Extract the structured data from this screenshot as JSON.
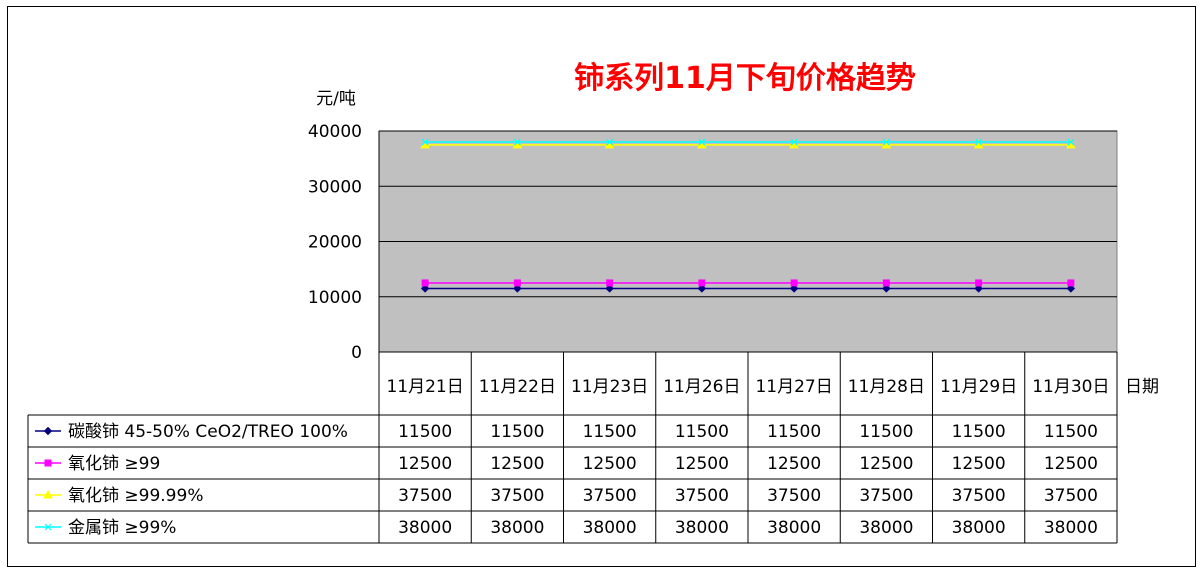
{
  "chart_data": {
    "type": "line",
    "title": "铈系列11月下旬价格趋势",
    "ylabel": "元/吨",
    "xlabel": "日期",
    "ylim": [
      0,
      40000
    ],
    "yticks": [
      "40000",
      "30000",
      "20000",
      "10000",
      "0"
    ],
    "categories": [
      "11月21日",
      "11月22日",
      "11月23日",
      "11月26日",
      "11月27日",
      "11月28日",
      "11月29日",
      "11月30日"
    ],
    "grid": true,
    "legend": "table-below",
    "series": [
      {
        "name": "碳酸铈 45-50% CeO2/TREO 100%",
        "values": [
          11500,
          11500,
          11500,
          11500,
          11500,
          11500,
          11500,
          11500
        ],
        "color": "#000080",
        "marker": "diamond"
      },
      {
        "name": "氧化铈 ≥99",
        "values": [
          12500,
          12500,
          12500,
          12500,
          12500,
          12500,
          12500,
          12500
        ],
        "color": "#ff00ff",
        "marker": "square"
      },
      {
        "name": "氧化铈 ≥99.99%",
        "values": [
          37500,
          37500,
          37500,
          37500,
          37500,
          37500,
          37500,
          37500
        ],
        "color": "#ffff00",
        "marker": "triangle"
      },
      {
        "name": "金属铈 ≥99%",
        "values": [
          38000,
          38000,
          38000,
          38000,
          38000,
          38000,
          38000,
          38000
        ],
        "color": "#00ffff",
        "marker": "x"
      }
    ],
    "plot_bg": "#c0c0c0",
    "title_color": "#ff0000"
  }
}
